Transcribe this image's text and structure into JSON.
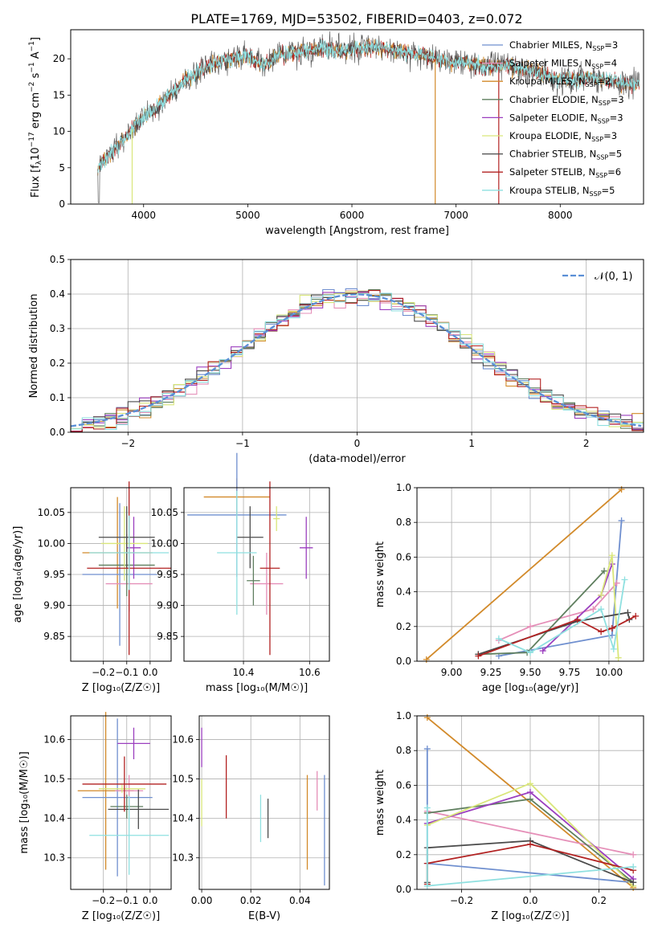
{
  "figure": {
    "title": "PLATE=1769, MJD=53502, FIBERID=0403, z=0.072"
  },
  "colors": {
    "Chabrier MILES": "#6f8fcf",
    "Salpeter MILES": "#e58fb8",
    "Kroupa MILES": "#d28a2a",
    "Chabrier ELODIE": "#5f7f5f",
    "Salpeter ELODIE": "#9b3fbf",
    "Kroupa ELODIE": "#d9e67a",
    "Chabrier STELIB": "#4b4b4b",
    "Salpeter STELIB": "#b22222",
    "Kroupa STELIB": "#8fe0e0",
    "normal": "#5b8fd6"
  },
  "chart_data": [
    {
      "id": "spectrum",
      "type": "line",
      "title": "PLATE=1769, MJD=53502, FIBERID=0403, z=0.072",
      "xlabel": "wavelength [Angstrom, rest frame]",
      "ylabel_main": "Flux [f",
      "ylabel_sub": "λ",
      "ylabel_tail": "10",
      "ylabel_exp": "−17",
      "ylabel_rest": " erg cm",
      "ylabel_exp2": "−2",
      "ylabel_s": " s",
      "ylabel_exp3": "−1",
      "ylabel_A": " A",
      "ylabel_exp4": "−1",
      "ylabel_end": "]",
      "xlim": [
        3300,
        8800
      ],
      "ylim": [
        0,
        24
      ],
      "xticks": [
        4000,
        5000,
        6000,
        7000,
        8000
      ],
      "yticks": [
        0,
        5,
        10,
        15,
        20
      ],
      "continuum": [
        [
          3560,
          5
        ],
        [
          3650,
          6.5
        ],
        [
          3750,
          8
        ],
        [
          3850,
          9.5
        ],
        [
          3950,
          11.5
        ],
        [
          4100,
          13
        ],
        [
          4250,
          15
        ],
        [
          4400,
          17
        ],
        [
          4550,
          18.5
        ],
        [
          4700,
          19.5
        ],
        [
          4850,
          20
        ],
        [
          5000,
          20.5
        ],
        [
          5150,
          19
        ],
        [
          5300,
          20.5
        ],
        [
          5500,
          21
        ],
        [
          5700,
          21.5
        ],
        [
          5900,
          21
        ],
        [
          6100,
          21.5
        ],
        [
          6300,
          21.5
        ],
        [
          6500,
          21
        ],
        [
          6700,
          20.5
        ],
        [
          6900,
          19.5
        ],
        [
          7100,
          19.5
        ],
        [
          7300,
          18.8
        ],
        [
          7500,
          19
        ],
        [
          7700,
          18.5
        ],
        [
          7900,
          17.5
        ],
        [
          8100,
          17
        ],
        [
          8300,
          17.5
        ],
        [
          8500,
          16.8
        ],
        [
          8760,
          16.5
        ]
      ],
      "legend": [
        {
          "name": "Chabrier MILES",
          "nssp": "3"
        },
        {
          "name": "Salpeter MILES",
          "nssp": "4"
        },
        {
          "name": "Kroupa MILES",
          "nssp": "2"
        },
        {
          "name": "Chabrier ELODIE",
          "nssp": "3"
        },
        {
          "name": "Salpeter ELODIE",
          "nssp": "3"
        },
        {
          "name": "Kroupa ELODIE",
          "nssp": "3"
        },
        {
          "name": "Chabrier STELIB",
          "nssp": "5"
        },
        {
          "name": "Salpeter STELIB",
          "nssp": "6"
        },
        {
          "name": "Kroupa STELIB",
          "nssp": "5"
        }
      ],
      "legend_nssp_label": "N",
      "legend_nssp_sub": "SSP",
      "legend_placement": "right"
    },
    {
      "id": "residuals",
      "type": "histogram",
      "xlabel": "(data-model)/error",
      "ylabel": "Normed distribution",
      "xlim": [
        -2.5,
        2.5
      ],
      "ylim": [
        0,
        0.5
      ],
      "xticks": [
        -2,
        -1,
        0,
        1,
        2
      ],
      "yticks": [
        0.0,
        0.1,
        0.2,
        0.3,
        0.4,
        0.5
      ],
      "grid": true,
      "bin_width": 0.1,
      "legend": "𝒩(0, 1)",
      "legend_placement": "top-right"
    },
    {
      "id": "age-vs-Z",
      "type": "errorbar",
      "xlabel": "Z [log₁₀(Z/Z☉)]",
      "ylabel": "age  [log₁₀(age/yr)]",
      "xlim": [
        -0.34,
        0.09
      ],
      "ylim": [
        9.81,
        10.09
      ],
      "xticks": [
        -0.2,
        -0.1,
        0.0
      ],
      "yticks": [
        9.85,
        9.9,
        9.95,
        10.0,
        10.05
      ],
      "grid": true,
      "points": [
        {
          "model": "Kroupa MILES",
          "x": -0.14,
          "xerr": 0.15,
          "y": 9.985,
          "yerr": 0.09
        },
        {
          "model": "Chabrier MILES",
          "x": -0.13,
          "xerr": 0.16,
          "y": 9.95,
          "yerr": 0.115
        },
        {
          "model": "Salpeter MILES",
          "x": -0.09,
          "xerr": 0.1,
          "y": 9.935,
          "yerr": 0.045
        },
        {
          "model": "Chabrier ELODIE",
          "x": -0.1,
          "xerr": 0.12,
          "y": 9.965,
          "yerr": 0.05
        },
        {
          "model": "Salpeter ELODIE",
          "x": -0.07,
          "xerr": 0.03,
          "y": 9.993,
          "yerr": 0.05
        },
        {
          "model": "Kroupa ELODIE",
          "x": -0.11,
          "xerr": 0.1,
          "y": 10.0,
          "yerr": 0.06
        },
        {
          "model": "Chabrier STELIB",
          "x": -0.1,
          "xerr": 0.12,
          "y": 10.01,
          "yerr": 0.05
        },
        {
          "model": "Salpeter STELIB",
          "x": -0.09,
          "xerr": 0.18,
          "y": 9.96,
          "yerr": 0.14
        },
        {
          "model": "Kroupa STELIB",
          "x": -0.09,
          "xerr": 0.17,
          "y": 9.985,
          "yerr": 0.06
        }
      ]
    },
    {
      "id": "age-vs-mass",
      "type": "errorbar",
      "xlabel": "mass [log₁₀(M/M☉)]",
      "ylabel": "",
      "xlim": [
        10.22,
        10.66
      ],
      "ylim": [
        9.81,
        10.09
      ],
      "xticks": [
        10.4,
        10.6
      ],
      "yticks": [
        9.85,
        9.9,
        9.95,
        10.0,
        10.05
      ],
      "grid": true,
      "points": [
        {
          "model": "Kroupa MILES",
          "x": 10.38,
          "xerr": 0.1,
          "y": 10.075,
          "yerr": 0.03
        },
        {
          "model": "Chabrier MILES",
          "x": 10.38,
          "xerr": 0.15,
          "y": 10.046,
          "yerr": 0.1
        },
        {
          "model": "Salpeter MILES",
          "x": 10.47,
          "xerr": 0.05,
          "y": 9.935,
          "yerr": 0.05
        },
        {
          "model": "Chabrier ELODIE",
          "x": 10.43,
          "xerr": 0.02,
          "y": 9.94,
          "yerr": 0.04
        },
        {
          "model": "Salpeter ELODIE",
          "x": 10.59,
          "xerr": 0.02,
          "y": 9.993,
          "yerr": 0.05
        },
        {
          "model": "Kroupa ELODIE",
          "x": 10.5,
          "xerr": 0.01,
          "y": 10.04,
          "yerr": 0.02
        },
        {
          "model": "Chabrier STELIB",
          "x": 10.42,
          "xerr": 0.04,
          "y": 10.01,
          "yerr": 0.05
        },
        {
          "model": "Salpeter STELIB",
          "x": 10.48,
          "xerr": 0.03,
          "y": 9.96,
          "yerr": 0.14
        },
        {
          "model": "Kroupa STELIB",
          "x": 10.38,
          "xerr": 0.06,
          "y": 9.985,
          "yerr": 0.1
        }
      ]
    },
    {
      "id": "weight-vs-age",
      "type": "line",
      "xlabel": "age  [log₁₀(age/yr)]",
      "ylabel": "mass weight",
      "xlim": [
        8.78,
        10.22
      ],
      "ylim": [
        0,
        1
      ],
      "xticks": [
        9.0,
        9.25,
        9.5,
        9.75,
        10.0
      ],
      "yticks": [
        0.0,
        0.2,
        0.4,
        0.6,
        0.8,
        1.0
      ],
      "grid": true,
      "series": [
        {
          "model": "Kroupa MILES",
          "x": [
            8.84,
            10.08
          ],
          "y": [
            0.01,
            0.99
          ]
        },
        {
          "model": "Chabrier MILES",
          "x": [
            9.3,
            10.02,
            10.08
          ],
          "y": [
            0.03,
            0.15,
            0.81
          ]
        },
        {
          "model": "Salpeter MILES",
          "x": [
            9.3,
            9.5,
            9.9,
            10.05
          ],
          "y": [
            0.12,
            0.2,
            0.3,
            0.45
          ]
        },
        {
          "model": "Chabrier ELODIE",
          "x": [
            9.17,
            9.48,
            9.97
          ],
          "y": [
            0.04,
            0.05,
            0.52
          ]
        },
        {
          "model": "Salpeter ELODIE",
          "x": [
            9.58,
            9.95,
            10.02
          ],
          "y": [
            0.06,
            0.38,
            0.56
          ]
        },
        {
          "model": "Kroupa ELODIE",
          "x": [
            9.95,
            10.02,
            10.06
          ],
          "y": [
            0.38,
            0.61,
            0.02
          ]
        },
        {
          "model": "Chabrier STELIB",
          "x": [
            9.17,
            9.8,
            10.12,
            10.13
          ],
          "y": [
            0.04,
            0.23,
            0.28,
            0.24
          ]
        },
        {
          "model": "Salpeter STELIB",
          "x": [
            9.17,
            9.8,
            9.95,
            10.02,
            10.17
          ],
          "y": [
            0.03,
            0.24,
            0.17,
            0.19,
            0.26
          ]
        },
        {
          "model": "Kroupa STELIB",
          "x": [
            9.3,
            9.5,
            9.95,
            10.03,
            10.1
          ],
          "y": [
            0.13,
            0.05,
            0.3,
            0.07,
            0.47
          ]
        }
      ]
    },
    {
      "id": "mass-vs-Z",
      "type": "errorbar",
      "xlabel": "Z [log₁₀(Z/Z☉)]",
      "ylabel": "mass [log₁₀(M/M☉)]",
      "xlim": [
        -0.34,
        0.09
      ],
      "ylim": [
        10.22,
        10.66
      ],
      "xticks": [
        -0.2,
        -0.1,
        0.0
      ],
      "yticks": [
        10.3,
        10.4,
        10.5,
        10.6
      ],
      "grid": true,
      "points": [
        {
          "model": "Kroupa MILES",
          "x": -0.19,
          "xerr": 0.12,
          "y": 10.47,
          "yerr": 0.2
        },
        {
          "model": "Chabrier MILES",
          "x": -0.14,
          "xerr": 0.15,
          "y": 10.453,
          "yerr": 0.2
        },
        {
          "model": "Salpeter MILES",
          "x": -0.09,
          "xerr": 0.06,
          "y": 10.47,
          "yerr": 0.04
        },
        {
          "model": "Chabrier ELODIE",
          "x": -0.1,
          "xerr": 0.07,
          "y": 10.43,
          "yerr": 0.03
        },
        {
          "model": "Salpeter ELODIE",
          "x": -0.07,
          "xerr": 0.07,
          "y": 10.59,
          "yerr": 0.04
        },
        {
          "model": "Kroupa ELODIE",
          "x": -0.12,
          "xerr": 0.1,
          "y": 10.475,
          "yerr": 0.01
        },
        {
          "model": "Chabrier STELIB",
          "x": -0.05,
          "xerr": 0.13,
          "y": 10.423,
          "yerr": 0.05
        },
        {
          "model": "Salpeter STELIB",
          "x": -0.11,
          "xerr": 0.18,
          "y": 10.487,
          "yerr": 0.07
        },
        {
          "model": "Kroupa STELIB",
          "x": -0.09,
          "xerr": 0.17,
          "y": 10.357,
          "yerr": 0.1
        }
      ]
    },
    {
      "id": "mass-vs-EBV",
      "type": "errorbar",
      "xlabel": "E(B-V)",
      "ylabel": "",
      "xlim": [
        -0.001,
        0.052
      ],
      "ylim": [
        10.22,
        10.66
      ],
      "xticks": [
        0.0,
        0.02,
        0.04
      ],
      "yticks": [
        10.3,
        10.4,
        10.5,
        10.6
      ],
      "grid": true,
      "points": [
        {
          "model": "Salpeter ELODIE",
          "x": 0.0,
          "y": 10.58,
          "yerr": 0.05
        },
        {
          "model": "Kroupa ELODIE",
          "x": 0.0,
          "y": 10.44,
          "yerr": 0.06
        },
        {
          "model": "Salpeter STELIB",
          "x": 0.01,
          "y": 10.48,
          "yerr": 0.08
        },
        {
          "model": "Kroupa STELIB",
          "x": 0.024,
          "y": 10.4,
          "yerr": 0.06
        },
        {
          "model": "Chabrier STELIB",
          "x": 0.027,
          "y": 10.4,
          "yerr": 0.05
        },
        {
          "model": "Kroupa MILES",
          "x": 0.043,
          "y": 10.39,
          "yerr": 0.12
        },
        {
          "model": "Salpeter MILES",
          "x": 0.047,
          "y": 10.47,
          "yerr": 0.05
        },
        {
          "model": "Chabrier MILES",
          "x": 0.05,
          "y": 10.37,
          "yerr": 0.14
        }
      ]
    },
    {
      "id": "weight-vs-Z",
      "type": "line",
      "xlabel": "Z [log₁₀(Z/Z☉)]",
      "ylabel": "mass weight",
      "xlim": [
        -0.33,
        0.33
      ],
      "ylim": [
        0,
        1
      ],
      "xticks": [
        -0.2,
        0.0,
        0.2
      ],
      "yticks": [
        0.0,
        0.2,
        0.4,
        0.6,
        0.8,
        1.0
      ],
      "grid": true,
      "series": [
        {
          "model": "Kroupa MILES",
          "x": [
            -0.3,
            0.3
          ],
          "y": [
            0.99,
            0.01
          ]
        },
        {
          "model": "Chabrier MILES",
          "x": [
            -0.3,
            -0.3,
            0.3
          ],
          "y": [
            0.81,
            0.15,
            0.04
          ]
        },
        {
          "model": "Salpeter MILES",
          "x": [
            -0.3,
            0.3
          ],
          "y": [
            0.45,
            0.2
          ]
        },
        {
          "model": "Chabrier ELODIE",
          "x": [
            -0.3,
            0.0,
            0.3
          ],
          "y": [
            0.44,
            0.52,
            0.04
          ]
        },
        {
          "model": "Salpeter ELODIE",
          "x": [
            -0.3,
            0.0,
            0.3
          ],
          "y": [
            0.38,
            0.56,
            0.06
          ]
        },
        {
          "model": "Kroupa ELODIE",
          "x": [
            -0.3,
            0.0,
            0.3
          ],
          "y": [
            0.37,
            0.61,
            0.02
          ]
        },
        {
          "model": "Chabrier STELIB",
          "x": [
            -0.3,
            -0.3,
            0.0,
            0.3
          ],
          "y": [
            0.04,
            0.24,
            0.28,
            0.04
          ]
        },
        {
          "model": "Salpeter STELIB",
          "x": [
            -0.3,
            -0.3,
            0.0,
            0.3
          ],
          "y": [
            0.03,
            0.15,
            0.26,
            0.11
          ]
        },
        {
          "model": "Kroupa STELIB",
          "x": [
            -0.3,
            -0.3,
            0.3
          ],
          "y": [
            0.47,
            0.02,
            0.13
          ]
        }
      ]
    }
  ]
}
